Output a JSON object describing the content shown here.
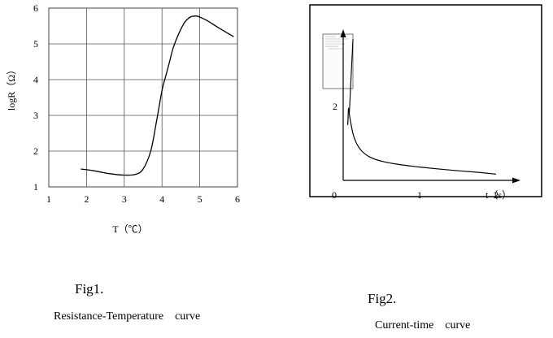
{
  "colors": {
    "ink": "#000000",
    "grid": "#555555",
    "background": "#ffffff"
  },
  "chart_data": [
    {
      "type": "line",
      "title": "",
      "caption": "Fig1.",
      "subcaption": "Resistance-Temperature    curve",
      "xlabel": "T（℃）",
      "ylabel": "logR（Ω）",
      "xlim": [
        1,
        6
      ],
      "ylim": [
        1,
        6
      ],
      "x_ticks": [
        "1",
        "2",
        "3",
        "4",
        "5",
        "6"
      ],
      "y_ticks": [
        "1",
        "2",
        "3",
        "4",
        "5",
        "6"
      ],
      "grid": true,
      "legend": "none",
      "series": [
        {
          "x": [
            1.85,
            2.2,
            2.6,
            3.0,
            3.3,
            3.5,
            3.7,
            3.85,
            4.0,
            4.1,
            4.2,
            4.3,
            4.45,
            4.6,
            4.75,
            4.9,
            5.0,
            5.2,
            5.5,
            5.9
          ],
          "y": [
            1.5,
            1.45,
            1.37,
            1.33,
            1.35,
            1.5,
            2.0,
            2.8,
            3.7,
            4.1,
            4.5,
            4.9,
            5.3,
            5.6,
            5.75,
            5.78,
            5.75,
            5.65,
            5.45,
            5.2
          ]
        }
      ]
    },
    {
      "type": "line",
      "title": "",
      "caption": "Fig2.",
      "subcaption": "Current-time    curve",
      "xlabel": "t（s）",
      "ylabel": "",
      "origin_label": "0",
      "xlim": [
        0,
        2.3
      ],
      "ylim": [
        0,
        3
      ],
      "x_ticks": [
        "1",
        "2"
      ],
      "y_ticks": [
        "2"
      ],
      "grid": false,
      "legend": "none",
      "inset": {
        "present": true,
        "text": ""
      },
      "series": [
        {
          "x": [
            0.06,
            0.065,
            0.07,
            0.08,
            0.1,
            0.13,
            0.18,
            0.25,
            0.35,
            0.5,
            0.7,
            1.0,
            1.4,
            1.8,
            2.0
          ],
          "y": [
            1.5,
            1.75,
            1.95,
            1.8,
            1.55,
            1.25,
            0.98,
            0.78,
            0.63,
            0.52,
            0.44,
            0.36,
            0.28,
            0.21,
            0.17
          ]
        }
      ]
    }
  ]
}
